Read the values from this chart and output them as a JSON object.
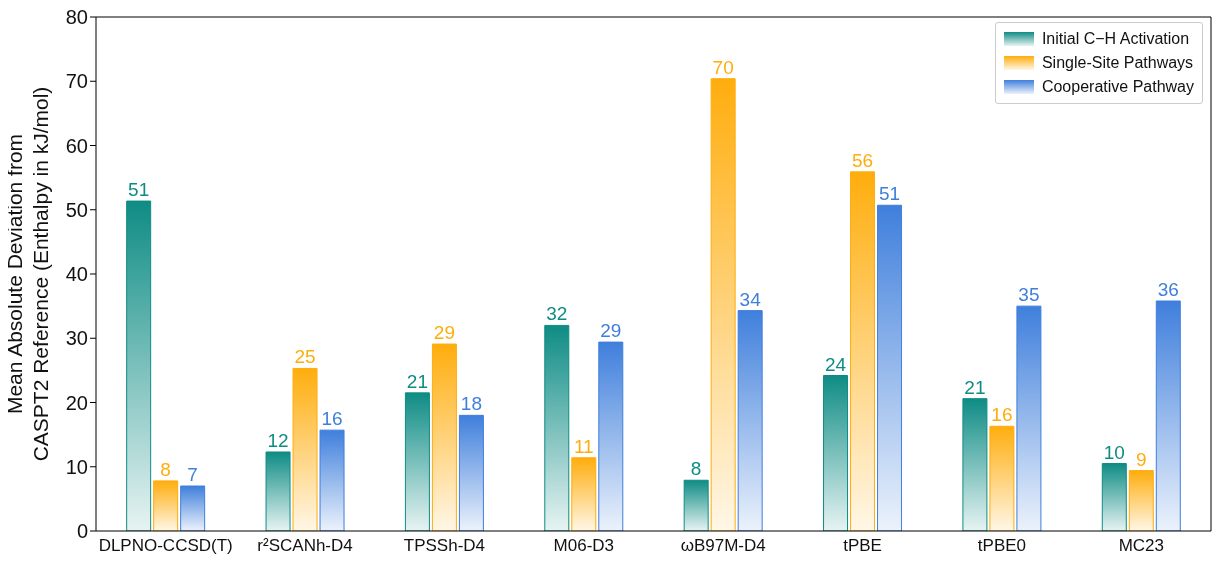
{
  "chart_data": {
    "type": "bar",
    "ylabel": "Mean Absolute Deviation from\nCASPT2 Reference (Enthalpy in kJ/mol)",
    "categories": [
      "DLPNO-CCSD(T)",
      "r²SCANh-D4",
      "TPSSh-D4",
      "M06-D3",
      "ωB97M-D4",
      "tPBE",
      "tPBE0",
      "MC23"
    ],
    "series": [
      {
        "name": "Initial C−H Activation",
        "color": "#0e8c84",
        "values": [
          51.35,
          12.3,
          21.5,
          32.0,
          7.9,
          24.2,
          20.6,
          10.5
        ],
        "value_labels": [
          "51",
          "12",
          "21",
          "32",
          "8",
          "24",
          "21",
          "10"
        ]
      },
      {
        "name": "Single-Site Pathways",
        "color": "#ffad0d",
        "values": [
          7.8,
          25.3,
          29.1,
          11.4,
          70.4,
          55.9,
          16.3,
          9.4
        ],
        "value_labels": [
          "8",
          "25",
          "29",
          "11",
          "70",
          "56",
          "16",
          "9"
        ]
      },
      {
        "name": "Cooperative Pathway",
        "color": "#3f7fdc",
        "values": [
          7.0,
          15.7,
          18.0,
          29.4,
          34.3,
          50.7,
          35.0,
          35.8
        ],
        "value_labels": [
          "7",
          "16",
          "18",
          "29",
          "34",
          "51",
          "35",
          "36"
        ]
      }
    ],
    "ylim": [
      0,
      80
    ],
    "yticks": [
      0,
      10,
      20,
      30,
      40,
      50,
      60,
      70,
      80
    ],
    "grid": false,
    "legend": "top right"
  }
}
